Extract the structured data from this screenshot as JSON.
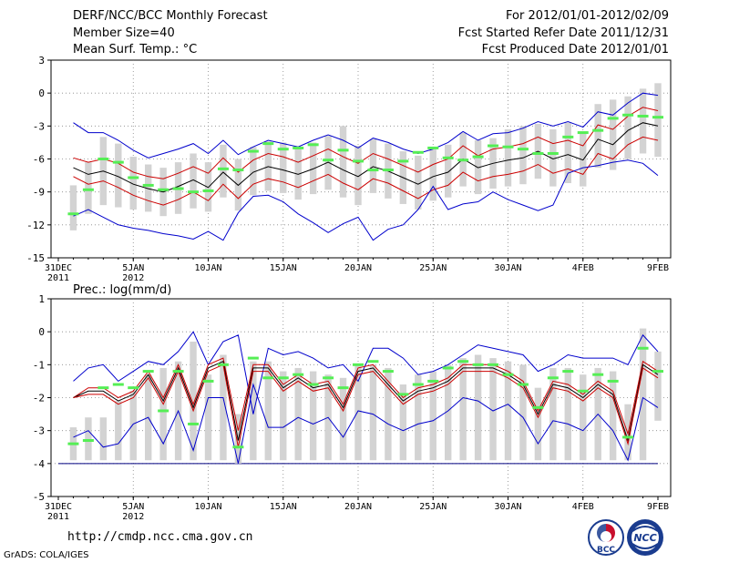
{
  "header": {
    "title": "DERF/NCC/BCC Monthly Forecast",
    "member_size": "Member Size=40",
    "variable_temp": "Mean Surf. Temp.: °C",
    "forecast_range": "For 2012/01/01-2012/02/09",
    "fcst_started": "Fcst Started Refer Date 2011/12/31",
    "fcst_produced": "Fcst Produced Date 2012/01/01"
  },
  "footer": {
    "url": "http://cmdp.ncc.cma.gov.cn",
    "credit": "GrADS: COLA/IGES",
    "logo_bcc": "BCC",
    "logo_ncc": "NCC"
  },
  "colors": {
    "ensemble_mean": "#000000",
    "spread_bounds": "#cc0000",
    "extreme_bounds": "#0000cc",
    "box_fill": "#d3d3d3",
    "median_mark": "#55ee55",
    "threshold_line": "#000080"
  },
  "chart_data": [
    {
      "type": "box",
      "title": "Mean Surf. Temp.: °C",
      "xlabel": "",
      "ylabel": "",
      "ylim": [
        -15,
        3
      ],
      "yticks": [
        "3",
        "0",
        "-3",
        "-6",
        "-9",
        "-12",
        "-15"
      ],
      "grid": true,
      "x_ticks": [
        {
          "day": 0,
          "label": "31DEC",
          "sub": "2011"
        },
        {
          "day": 5,
          "label": "5JAN",
          "sub": "2012"
        },
        {
          "day": 10,
          "label": "10JAN",
          "sub": ""
        },
        {
          "day": 15,
          "label": "15JAN",
          "sub": ""
        },
        {
          "day": 20,
          "label": "20JAN",
          "sub": ""
        },
        {
          "day": 25,
          "label": "25JAN",
          "sub": ""
        },
        {
          "day": 30,
          "label": "30JAN",
          "sub": ""
        },
        {
          "day": 35,
          "label": "4FEB",
          "sub": ""
        },
        {
          "day": 40,
          "label": "9FEB",
          "sub": ""
        }
      ],
      "days": [
        1,
        2,
        3,
        4,
        5,
        6,
        7,
        8,
        9,
        10,
        11,
        12,
        13,
        14,
        15,
        16,
        17,
        18,
        19,
        20,
        21,
        22,
        23,
        24,
        25,
        26,
        27,
        28,
        29,
        30,
        31,
        32,
        33,
        34,
        35,
        36,
        37,
        38,
        39,
        40
      ],
      "series": [
        {
          "name": "Max",
          "color_key": "extreme_bounds",
          "values": [
            -2.7,
            -3.6,
            -3.6,
            -4.3,
            -5.2,
            -5.9,
            -5.5,
            -5.1,
            -4.6,
            -5.5,
            -4.3,
            -5.6,
            -4.9,
            -4.3,
            -4.6,
            -4.9,
            -4.3,
            -3.8,
            -4.3,
            -5.0,
            -4.1,
            -4.5,
            -5.1,
            -5.5,
            -5.1,
            -4.5,
            -3.5,
            -4.3,
            -3.7,
            -3.6,
            -3.2,
            -2.6,
            -3.0,
            -2.6,
            -3.1,
            -1.7,
            -2.0,
            -0.9,
            0.0,
            -0.2
          ]
        },
        {
          "name": "Upper",
          "color_key": "spread_bounds",
          "values": [
            -5.9,
            -6.3,
            -6.0,
            -6.4,
            -7.2,
            -7.6,
            -7.8,
            -7.3,
            -6.7,
            -7.3,
            -5.9,
            -7.2,
            -6.1,
            -5.5,
            -5.8,
            -6.3,
            -5.7,
            -5.1,
            -5.8,
            -6.4,
            -5.5,
            -6.0,
            -6.6,
            -7.2,
            -6.5,
            -6.0,
            -4.8,
            -5.7,
            -5.1,
            -4.9,
            -4.6,
            -4.0,
            -4.6,
            -4.3,
            -4.8,
            -2.9,
            -3.3,
            -2.1,
            -1.3,
            -1.6
          ]
        },
        {
          "name": "Mean",
          "color_key": "ensemble_mean",
          "values": [
            -6.8,
            -7.4,
            -7.1,
            -7.6,
            -8.3,
            -8.7,
            -9.0,
            -8.5,
            -7.9,
            -8.6,
            -7.2,
            -8.4,
            -7.2,
            -6.7,
            -7.0,
            -7.4,
            -6.9,
            -6.3,
            -7.0,
            -7.6,
            -6.7,
            -7.1,
            -7.7,
            -8.3,
            -7.6,
            -7.2,
            -6.0,
            -6.8,
            -6.4,
            -6.1,
            -5.9,
            -5.3,
            -6.0,
            -5.6,
            -6.1,
            -4.2,
            -4.7,
            -3.4,
            -2.7,
            -3.0
          ]
        },
        {
          "name": "Lower",
          "color_key": "spread_bounds",
          "values": [
            -7.6,
            -8.3,
            -8.0,
            -8.6,
            -9.3,
            -9.8,
            -10.2,
            -9.7,
            -9.0,
            -9.8,
            -8.3,
            -9.6,
            -8.3,
            -7.8,
            -8.1,
            -8.6,
            -8.0,
            -7.4,
            -8.2,
            -8.8,
            -7.8,
            -8.2,
            -8.9,
            -9.6,
            -8.8,
            -8.4,
            -7.2,
            -8.0,
            -7.6,
            -7.4,
            -7.1,
            -6.5,
            -7.3,
            -6.9,
            -7.4,
            -5.5,
            -6.0,
            -4.7,
            -4.0,
            -4.3
          ]
        },
        {
          "name": "Min",
          "color_key": "extreme_bounds",
          "values": [
            -11.2,
            -10.6,
            -11.3,
            -12.0,
            -12.3,
            -12.5,
            -12.8,
            -13.0,
            -13.3,
            -12.6,
            -13.4,
            -10.9,
            -9.4,
            -9.3,
            -9.9,
            -11.0,
            -11.8,
            -12.7,
            -11.9,
            -11.3,
            -13.4,
            -12.4,
            -12.0,
            -10.6,
            -8.5,
            -10.6,
            -10.1,
            -9.9,
            -9.0,
            -9.7,
            -10.2,
            -10.7,
            -10.2,
            -7.3,
            -6.8,
            -6.6,
            -6.3,
            -6.1,
            -6.4,
            -7.5
          ]
        }
      ],
      "boxes": {
        "low": [
          -12.5,
          -11.0,
          -10.2,
          -10.4,
          -10.6,
          -10.8,
          -11.2,
          -11.0,
          -10.5,
          -10.8,
          -9.5,
          -10.7,
          -9.3,
          -8.9,
          -9.1,
          -9.7,
          -9.2,
          -8.8,
          -9.5,
          -10.2,
          -9.1,
          -9.6,
          -10.1,
          -10.6,
          -9.8,
          -9.5,
          -8.5,
          -9.2,
          -8.7,
          -8.5,
          -8.3,
          -7.8,
          -8.5,
          -8.2,
          -8.5,
          -6.8,
          -7.0,
          -6.0,
          -5.5,
          -5.8
        ],
        "high": [
          -8.4,
          -6.3,
          -4.0,
          -4.6,
          -5.8,
          -6.5,
          -6.8,
          -6.3,
          -5.5,
          -6.3,
          -4.7,
          -6.0,
          -4.9,
          -4.4,
          -4.5,
          -4.9,
          -4.5,
          -3.9,
          -3.0,
          -4.8,
          -4.2,
          -4.6,
          -5.3,
          -5.7,
          -5.1,
          -4.7,
          -3.6,
          -4.3,
          -4.1,
          -3.3,
          -3.0,
          -2.8,
          -3.3,
          -2.7,
          -3.5,
          -1.0,
          -0.6,
          -0.3,
          0.4,
          0.9
        ],
        "median": [
          -11.0,
          -8.8,
          -6.0,
          -6.3,
          -7.7,
          -8.4,
          -8.8,
          -8.7,
          -9.0,
          -8.9,
          -6.9,
          -7.0,
          -5.3,
          -4.6,
          -5.1,
          -5.0,
          -4.7,
          -6.1,
          -5.2,
          -6.2,
          -7.0,
          -7.0,
          -6.2,
          -5.4,
          -5.0,
          -5.9,
          -6.1,
          -5.8,
          -4.8,
          -4.9,
          -5.1,
          -5.5,
          -5.5,
          -4.0,
          -3.6,
          -3.4,
          -2.3,
          -2.0,
          -2.1,
          -2.2
        ]
      }
    },
    {
      "type": "box",
      "title": "Prec.: log(mm/d)",
      "xlabel": "",
      "ylabel": "",
      "ylim": [
        -5,
        1
      ],
      "yticks": [
        "1",
        "0",
        "-1",
        "-2",
        "-3",
        "-4",
        "-5"
      ],
      "threshold": -4,
      "grid": true,
      "x_ticks": [
        {
          "day": 0,
          "label": "31DEC",
          "sub": "2011"
        },
        {
          "day": 5,
          "label": "5JAN",
          "sub": "2012"
        },
        {
          "day": 10,
          "label": "10JAN",
          "sub": ""
        },
        {
          "day": 15,
          "label": "15JAN",
          "sub": ""
        },
        {
          "day": 20,
          "label": "20JAN",
          "sub": ""
        },
        {
          "day": 25,
          "label": "25JAN",
          "sub": ""
        },
        {
          "day": 30,
          "label": "30JAN",
          "sub": ""
        },
        {
          "day": 35,
          "label": "4FEB",
          "sub": ""
        },
        {
          "day": 40,
          "label": "9FEB",
          "sub": ""
        }
      ],
      "days": [
        1,
        2,
        3,
        4,
        5,
        6,
        7,
        8,
        9,
        10,
        11,
        12,
        13,
        14,
        15,
        16,
        17,
        18,
        19,
        20,
        21,
        22,
        23,
        24,
        25,
        26,
        27,
        28,
        29,
        30,
        31,
        32,
        33,
        34,
        35,
        36,
        37,
        38,
        39,
        40
      ],
      "series": [
        {
          "name": "Max",
          "color_key": "extreme_bounds",
          "values": [
            -1.5,
            -1.1,
            -1.0,
            -1.5,
            -1.2,
            -0.9,
            -1.0,
            -0.6,
            0.0,
            -1.0,
            -0.3,
            -0.1,
            -2.5,
            -0.5,
            -0.7,
            -0.6,
            -0.8,
            -1.1,
            -1.0,
            -1.5,
            -0.5,
            -0.5,
            -0.8,
            -1.3,
            -1.2,
            -1.0,
            -0.7,
            -0.4,
            -0.5,
            -0.6,
            -0.7,
            -1.2,
            -1.0,
            -0.7,
            -0.8,
            -0.8,
            -0.8,
            -1.0,
            -0.1,
            -0.6
          ]
        },
        {
          "name": "Upper",
          "color_key": "spread_bounds",
          "values": [
            -2.0,
            -1.7,
            -1.7,
            -2.0,
            -1.8,
            -1.2,
            -2.0,
            -1.0,
            -2.2,
            -1.0,
            -0.8,
            -3.0,
            -1.0,
            -1.0,
            -1.6,
            -1.3,
            -1.6,
            -1.5,
            -2.2,
            -1.1,
            -1.0,
            -1.5,
            -2.0,
            -1.7,
            -1.6,
            -1.4,
            -1.0,
            -1.0,
            -1.0,
            -1.2,
            -1.5,
            -2.4,
            -1.5,
            -1.6,
            -1.9,
            -1.5,
            -1.8,
            -3.1,
            -0.9,
            -1.2
          ]
        },
        {
          "name": "Mean",
          "color_key": "ensemble_mean",
          "values": [
            -2.0,
            -1.8,
            -1.8,
            -2.1,
            -1.9,
            -1.3,
            -2.1,
            -1.1,
            -2.3,
            -1.1,
            -0.9,
            -3.3,
            -1.1,
            -1.1,
            -1.7,
            -1.4,
            -1.7,
            -1.6,
            -2.3,
            -1.2,
            -1.1,
            -1.6,
            -2.1,
            -1.8,
            -1.7,
            -1.5,
            -1.1,
            -1.1,
            -1.1,
            -1.3,
            -1.6,
            -2.5,
            -1.6,
            -1.7,
            -2.0,
            -1.6,
            -1.9,
            -3.3,
            -1.0,
            -1.3
          ]
        },
        {
          "name": "Lower",
          "color_key": "spread_bounds",
          "values": [
            -2.0,
            -1.9,
            -1.9,
            -2.2,
            -2.0,
            -1.4,
            -2.2,
            -1.2,
            -2.4,
            -1.2,
            -1.0,
            -3.5,
            -1.2,
            -1.2,
            -1.8,
            -1.5,
            -1.8,
            -1.7,
            -2.4,
            -1.3,
            -1.2,
            -1.7,
            -2.2,
            -1.9,
            -1.8,
            -1.6,
            -1.2,
            -1.2,
            -1.2,
            -1.4,
            -1.7,
            -2.6,
            -1.7,
            -1.8,
            -2.1,
            -1.7,
            -2.0,
            -3.4,
            -1.1,
            -1.4
          ]
        },
        {
          "name": "Min",
          "color_key": "extreme_bounds",
          "values": [
            -3.2,
            -3.0,
            -3.5,
            -3.4,
            -2.8,
            -2.6,
            -3.4,
            -2.4,
            -3.6,
            -2.0,
            -2.0,
            -4.0,
            -1.6,
            -2.9,
            -2.9,
            -2.6,
            -2.8,
            -2.6,
            -3.2,
            -2.4,
            -2.5,
            -2.8,
            -3.0,
            -2.8,
            -2.7,
            -2.4,
            -2.0,
            -2.1,
            -2.4,
            -2.2,
            -2.6,
            -3.4,
            -2.7,
            -2.8,
            -3.0,
            -2.5,
            -3.0,
            -3.9,
            -2.0,
            -2.3
          ]
        }
      ],
      "boxes": {
        "low": [
          -3.9,
          -3.9,
          -3.9,
          -3.9,
          -3.9,
          -3.9,
          -3.9,
          -3.9,
          -3.9,
          -3.9,
          -3.9,
          -4.0,
          -3.9,
          -3.9,
          -3.9,
          -3.9,
          -3.9,
          -3.9,
          -3.9,
          -3.9,
          -3.9,
          -3.9,
          -3.9,
          -3.9,
          -3.9,
          -3.9,
          -3.9,
          -3.9,
          -3.9,
          -3.9,
          -3.9,
          -3.9,
          -3.9,
          -3.9,
          -3.9,
          -3.9,
          -3.9,
          -3.9,
          -3.9,
          -2.7
        ],
        "high": [
          -2.9,
          -2.6,
          -2.6,
          -2.1,
          -1.8,
          -1.3,
          -1.1,
          -0.9,
          -0.3,
          -1.3,
          -0.7,
          -2.5,
          -0.9,
          -0.9,
          -1.2,
          -1.1,
          -1.2,
          -1.3,
          -1.4,
          -1.0,
          -1.0,
          -1.1,
          -1.6,
          -1.3,
          -1.2,
          -1.0,
          -0.8,
          -0.7,
          -0.8,
          -0.9,
          -1.0,
          -1.7,
          -1.1,
          -1.1,
          -1.3,
          -1.1,
          -1.2,
          -2.2,
          0.1,
          -0.6
        ],
        "median": [
          -3.4,
          -3.3,
          -1.7,
          -1.6,
          -1.7,
          -1.2,
          -2.4,
          -1.2,
          -2.8,
          -1.5,
          -1.0,
          -3.5,
          -0.8,
          -1.4,
          -1.4,
          -1.3,
          -1.6,
          -1.4,
          -1.7,
          -1.0,
          -0.9,
          -1.2,
          -1.9,
          -1.6,
          -1.5,
          -1.1,
          -0.9,
          -1.0,
          -1.0,
          -1.3,
          -1.6,
          -2.3,
          -1.4,
          -1.2,
          -1.8,
          -1.3,
          -1.5,
          -3.2,
          -0.5,
          -1.2
        ]
      }
    }
  ]
}
